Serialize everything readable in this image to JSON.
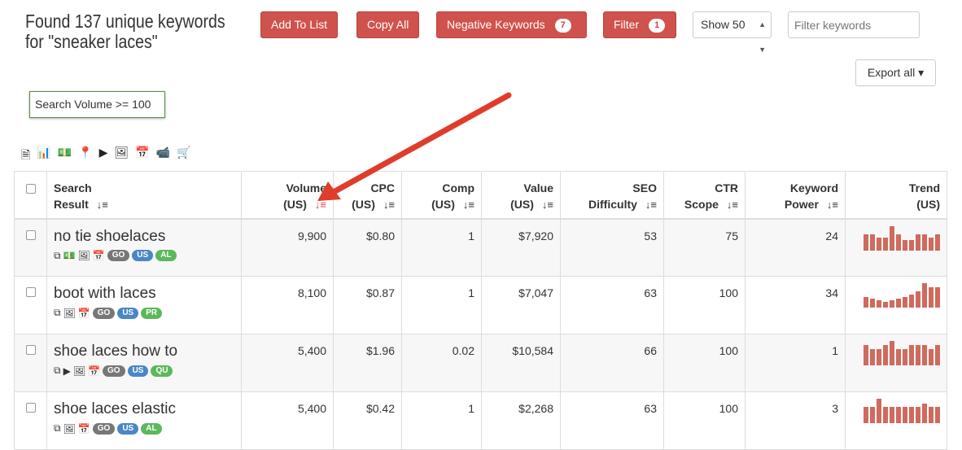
{
  "title": "Found 137 unique keywords for \"sneaker laces\"",
  "buttons": {
    "add": "Add To List",
    "copy": "Copy All",
    "negative": "Negative Keywords",
    "negative_count": "7",
    "filter": "Filter",
    "filter_count": "1"
  },
  "show_select": "Show 50",
  "filter_placeholder": "Filter keywords",
  "export": "Export all ▾",
  "active_filter": "Search Volume >= 100",
  "toolbar_icons": [
    "document-icon",
    "chart-icon",
    "money-icon",
    "map-pin-icon",
    "youtube-icon",
    "image-icon",
    "calendar-icon",
    "video-icon",
    "cart-icon"
  ],
  "columns": [
    {
      "l1": "Search",
      "l2": "Result"
    },
    {
      "l1": "Volume",
      "l2": "(US)"
    },
    {
      "l1": "CPC",
      "l2": "(US)"
    },
    {
      "l1": "Comp",
      "l2": "(US)"
    },
    {
      "l1": "Value",
      "l2": "(US)"
    },
    {
      "l1": "SEO",
      "l2": "Difficulty"
    },
    {
      "l1": "CTR",
      "l2": "Scope"
    },
    {
      "l1": "Keyword",
      "l2": "Power"
    },
    {
      "l1": "Trend",
      "l2": "(US)"
    }
  ],
  "rows": [
    {
      "keyword": "no tie shoelaces",
      "icons": [
        "copy-icon",
        "money-icon",
        "image-icon",
        "calendar-icon"
      ],
      "tags": [
        "GO",
        "US",
        "AL"
      ],
      "volume": "9,900",
      "cpc": "$0.80",
      "comp": "1",
      "value": "$7,920",
      "seo": "53",
      "ctr": "75",
      "power": "24",
      "trend": [
        59,
        59,
        47,
        47,
        89,
        59,
        38,
        38,
        59,
        59,
        47,
        59
      ]
    },
    {
      "keyword": "boot with laces",
      "icons": [
        "copy-icon",
        "image-icon",
        "calendar-icon"
      ],
      "tags": [
        "GO",
        "US",
        "PR"
      ],
      "volume": "8,100",
      "cpc": "$0.87",
      "comp": "1",
      "value": "$7,047",
      "seo": "63",
      "ctr": "100",
      "power": "34",
      "trend": [
        38,
        32,
        26,
        20,
        26,
        32,
        38,
        47,
        59,
        89,
        74,
        74
      ]
    },
    {
      "keyword": "shoe laces how to",
      "icons": [
        "copy-icon",
        "youtube-icon",
        "image-icon",
        "calendar-icon"
      ],
      "tags": [
        "GO",
        "US",
        "QU"
      ],
      "volume": "5,400",
      "cpc": "$1.96",
      "comp": "0.02",
      "value": "$10,584",
      "seo": "66",
      "ctr": "100",
      "power": "1",
      "trend": [
        74,
        59,
        59,
        74,
        89,
        59,
        59,
        74,
        74,
        74,
        59,
        74
      ]
    },
    {
      "keyword": "shoe laces elastic",
      "icons": [
        "copy-icon",
        "image-icon",
        "calendar-icon"
      ],
      "tags": [
        "GO",
        "US",
        "AL"
      ],
      "volume": "5,400",
      "cpc": "$0.42",
      "comp": "1",
      "value": "$2,268",
      "seo": "63",
      "ctr": "100",
      "power": "3",
      "trend": [
        58,
        58,
        88,
        58,
        58,
        58,
        58,
        58,
        58,
        70,
        58,
        58
      ]
    }
  ],
  "colors": {
    "button": "#d0524d",
    "tag_go": "#777777",
    "tag_us": "#4a86c8",
    "tag_green": "#5cb85c",
    "trend_bar": "#cf6a5e",
    "arrow": "#e03c2c"
  }
}
